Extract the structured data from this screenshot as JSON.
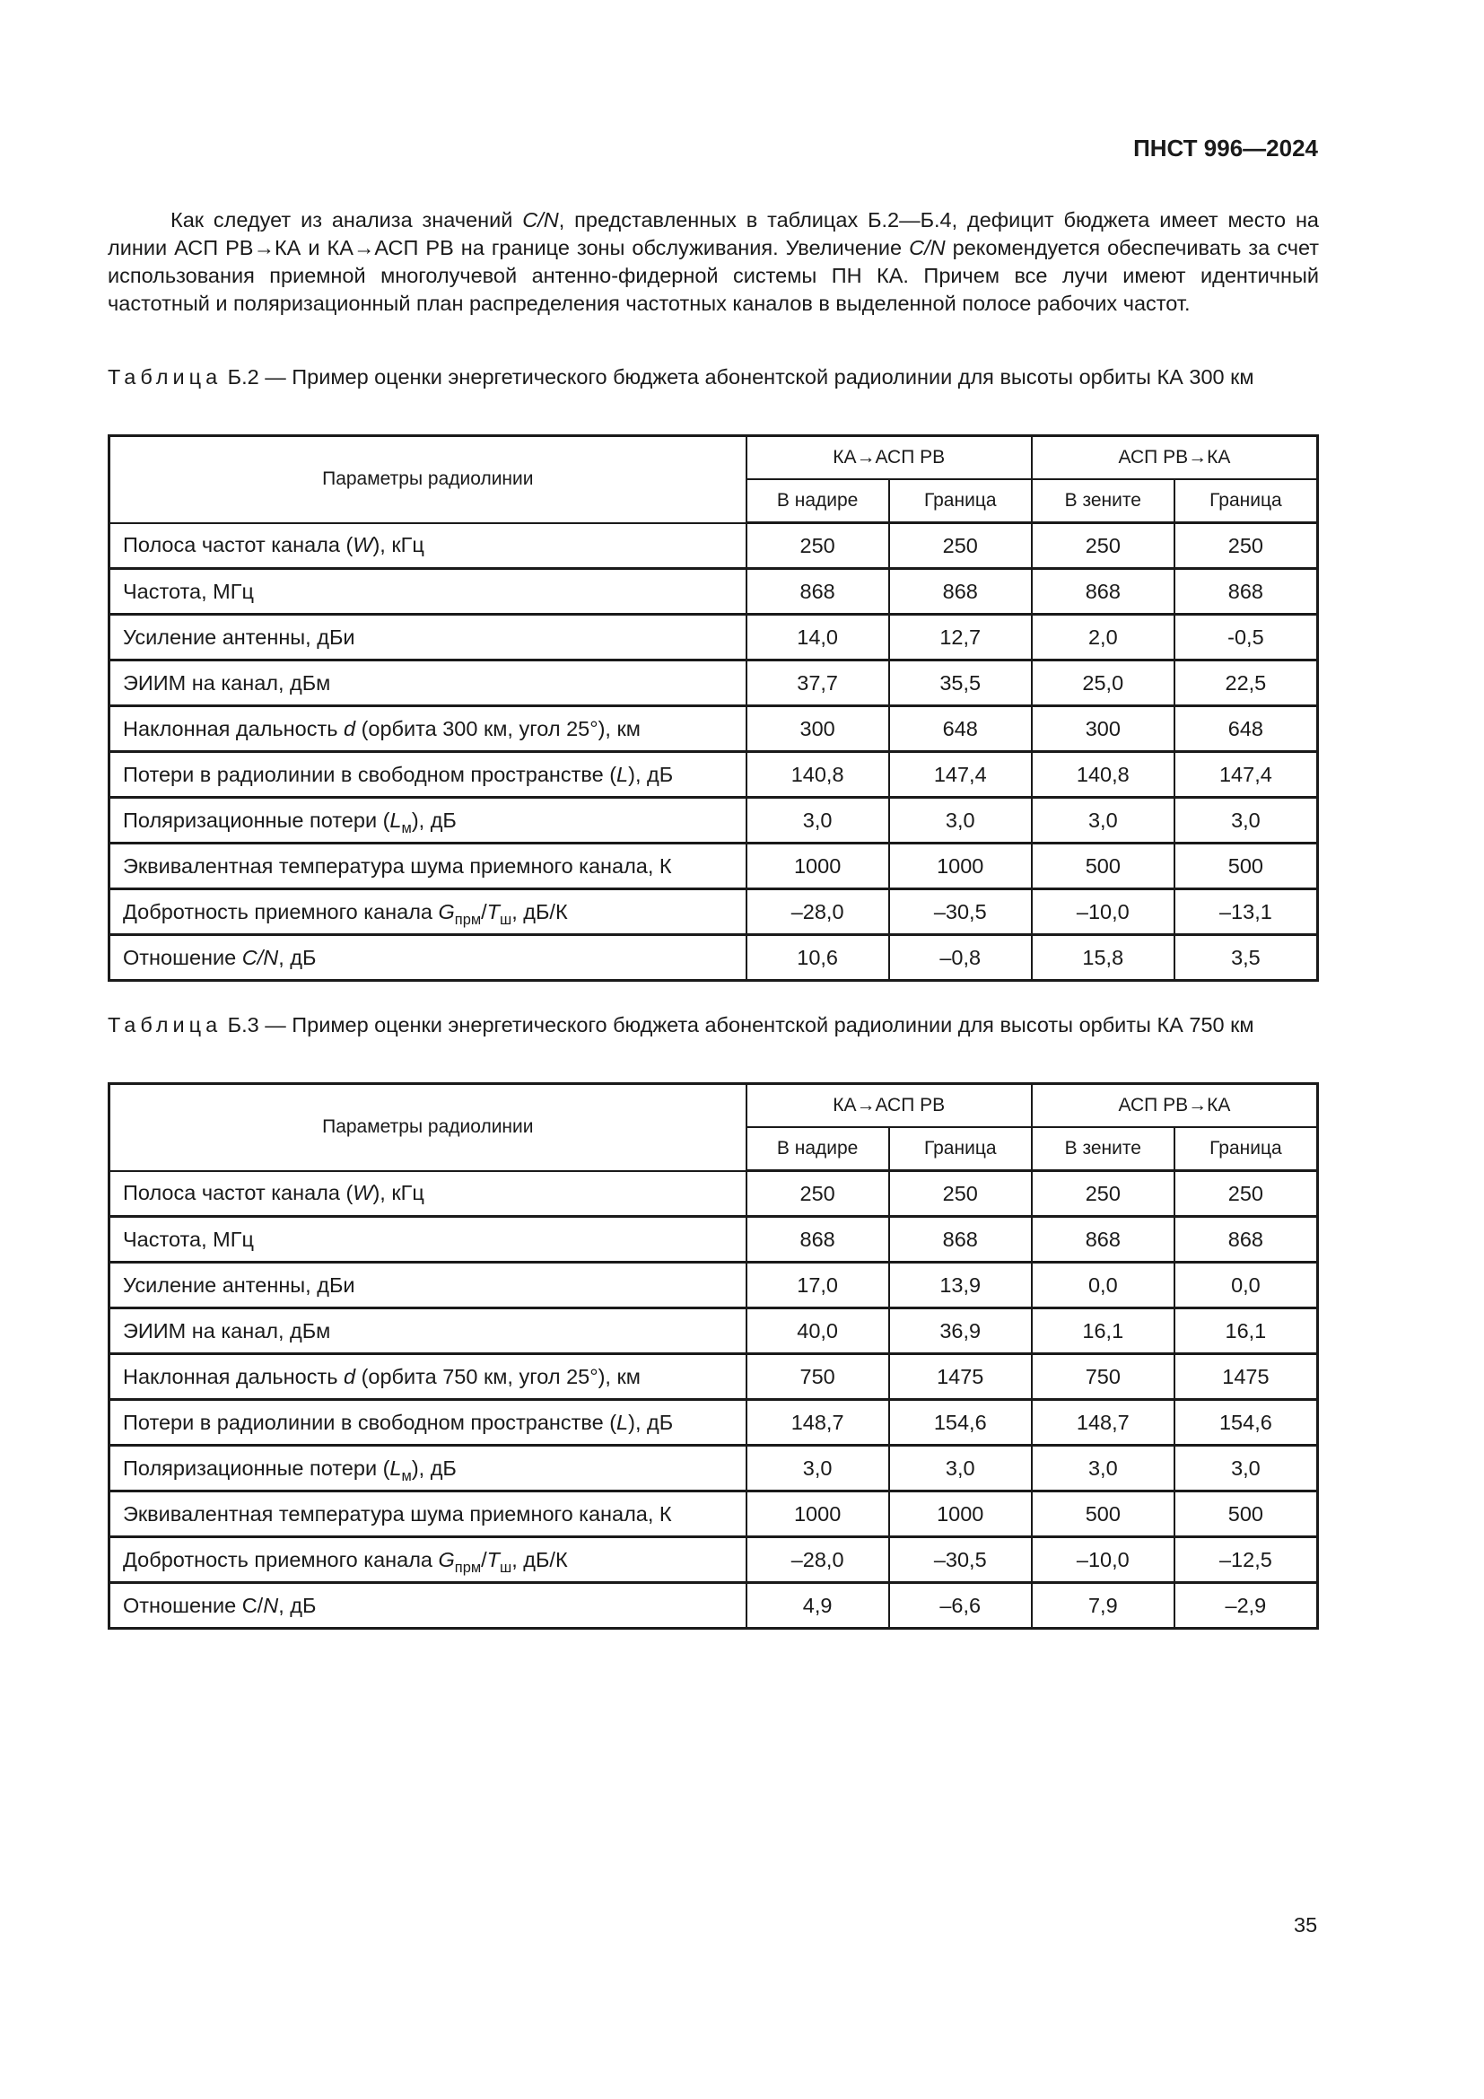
{
  "header": {
    "doc_id": "ПНСТ 996—2024"
  },
  "paragraph": [
    {
      "t": "Как следует из анализа значений "
    },
    {
      "t": "C/N",
      "i": true
    },
    {
      "t": ", представленных в таблицах Б.2—Б.4, дефицит бюджета имеет место на линии АСП РВ→КА и КА→АСП РВ на границе зоны обслуживания. Увеличение "
    },
    {
      "t": "C/N",
      "i": true
    },
    {
      "t": " рекомендуется обеспечивать за счет использования приемной многолучевой антенно-фидерной системы ПН КА. Причем все лучи имеют идентичный частотный и поляризационный план распределения частотных каналов в выделенной полосе рабочих частот."
    }
  ],
  "tables": [
    {
      "caption_word": "Таблица",
      "caption_text": " Б.2 — Пример оценки энергетического бюджета абонентской радиолинии для высоты орбиты КА 300 км",
      "header": {
        "param": "Параметры радиолинии",
        "group1": "КА→АСП РВ",
        "group2": "АСП РВ→КА",
        "sub": [
          "В надире",
          "Граница",
          "В зените",
          "Граница"
        ]
      },
      "rows": [
        {
          "label": [
            {
              "t": "Полоса частот канала ("
            },
            {
              "t": "W",
              "i": true
            },
            {
              "t": "), кГц"
            }
          ],
          "values": [
            "250",
            "250",
            "250",
            "250"
          ]
        },
        {
          "label": [
            {
              "t": "Частота, МГц"
            }
          ],
          "values": [
            "868",
            "868",
            "868",
            "868"
          ]
        },
        {
          "label": [
            {
              "t": "Усиление антенны, дБи"
            }
          ],
          "values": [
            "14,0",
            "12,7",
            "2,0",
            "-0,5"
          ]
        },
        {
          "label": [
            {
              "t": "ЭИИМ на канал, дБм"
            }
          ],
          "values": [
            "37,7",
            "35,5",
            "25,0",
            "22,5"
          ]
        },
        {
          "label": [
            {
              "t": "Наклонная дальность "
            },
            {
              "t": "d",
              "i": true
            },
            {
              "t": " (орбита 300 км, угол 25°), км"
            }
          ],
          "values": [
            "300",
            "648",
            "300",
            "648"
          ]
        },
        {
          "label": [
            {
              "t": "Потери в радиолинии в свободном пространстве ("
            },
            {
              "t": "L",
              "i": true
            },
            {
              "t": "), дБ"
            }
          ],
          "values": [
            "140,8",
            "147,4",
            "140,8",
            "147,4"
          ]
        },
        {
          "label": [
            {
              "t": "Поляризационные потери ("
            },
            {
              "t": "L",
              "i": true
            },
            {
              "t": "м",
              "sub": true
            },
            {
              "t": "), дБ"
            }
          ],
          "values": [
            "3,0",
            "3,0",
            "3,0",
            "3,0"
          ]
        },
        {
          "label": [
            {
              "t": "Эквивалентная температура шума приемного канала, К"
            }
          ],
          "values": [
            "1000",
            "1000",
            "500",
            "500"
          ]
        },
        {
          "label": [
            {
              "t": "Добротность приемного канала "
            },
            {
              "t": "G",
              "i": true
            },
            {
              "t": "прм",
              "sub": true
            },
            {
              "t": "/"
            },
            {
              "t": "T",
              "i": true
            },
            {
              "t": "ш",
              "sub": true
            },
            {
              "t": ", дБ/К"
            }
          ],
          "values": [
            "–28,0",
            "–30,5",
            "–10,0",
            "–13,1"
          ]
        },
        {
          "label": [
            {
              "t": "Отношение "
            },
            {
              "t": "C/N",
              "i": true
            },
            {
              "t": ", дБ"
            }
          ],
          "values": [
            "10,6",
            "–0,8",
            "15,8",
            "3,5"
          ]
        }
      ]
    },
    {
      "caption_word": "Таблица",
      "caption_text": " Б.3 — Пример оценки энергетического бюджета абонентской радиолинии для высоты орбиты КА 750 км",
      "header": {
        "param": "Параметры радиолинии",
        "group1": "КА→АСП РВ",
        "group2": "АСП РВ→КА",
        "sub": [
          "В надире",
          "Граница",
          "В зените",
          "Граница"
        ]
      },
      "rows": [
        {
          "label": [
            {
              "t": "Полоса частот канала ("
            },
            {
              "t": "W",
              "i": true
            },
            {
              "t": "), кГц"
            }
          ],
          "values": [
            "250",
            "250",
            "250",
            "250"
          ]
        },
        {
          "label": [
            {
              "t": "Частота, МГц"
            }
          ],
          "values": [
            "868",
            "868",
            "868",
            "868"
          ]
        },
        {
          "label": [
            {
              "t": "Усиление антенны, дБи"
            }
          ],
          "values": [
            "17,0",
            "13,9",
            "0,0",
            "0,0"
          ]
        },
        {
          "label": [
            {
              "t": "ЭИИМ на канал, дБм"
            }
          ],
          "values": [
            "40,0",
            "36,9",
            "16,1",
            "16,1"
          ]
        },
        {
          "label": [
            {
              "t": "Наклонная дальность "
            },
            {
              "t": "d",
              "i": true
            },
            {
              "t": " (орбита 750 км, угол 25°), км"
            }
          ],
          "values": [
            "750",
            "1475",
            "750",
            "1475"
          ]
        },
        {
          "label": [
            {
              "t": "Потери в радиолинии в свободном пространстве ("
            },
            {
              "t": "L",
              "i": true
            },
            {
              "t": "), дБ"
            }
          ],
          "values": [
            "148,7",
            "154,6",
            "148,7",
            "154,6"
          ]
        },
        {
          "label": [
            {
              "t": "Поляризационные потери ("
            },
            {
              "t": "L",
              "i": true
            },
            {
              "t": "м",
              "sub": true
            },
            {
              "t": "), дБ"
            }
          ],
          "values": [
            "3,0",
            "3,0",
            "3,0",
            "3,0"
          ]
        },
        {
          "label": [
            {
              "t": "Эквивалентная температура шума приемного канала, К"
            }
          ],
          "values": [
            "1000",
            "1000",
            "500",
            "500"
          ]
        },
        {
          "label": [
            {
              "t": "Добротность приемного канала "
            },
            {
              "t": "G",
              "i": true
            },
            {
              "t": "прм",
              "sub": true
            },
            {
              "t": "/"
            },
            {
              "t": "T",
              "i": true
            },
            {
              "t": "ш",
              "sub": true
            },
            {
              "t": ", дБ/К"
            }
          ],
          "values": [
            "–28,0",
            "–30,5",
            "–10,0",
            "–12,5"
          ]
        },
        {
          "label": [
            {
              "t": "Отношение C/"
            },
            {
              "t": "N",
              "i": true
            },
            {
              "t": ", дБ"
            }
          ],
          "values": [
            "4,9",
            "–6,6",
            "7,9",
            "–2,9"
          ]
        }
      ]
    }
  ],
  "footer": {
    "page_number": "35"
  }
}
